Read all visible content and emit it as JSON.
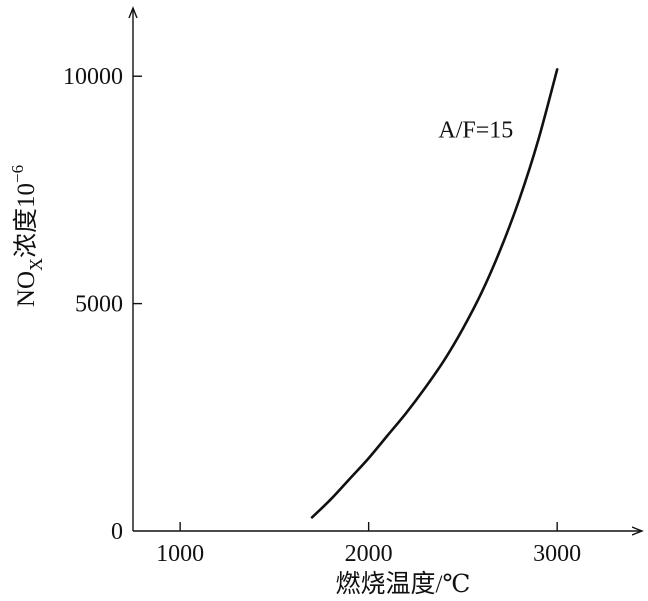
{
  "chart_data": {
    "type": "line",
    "title": "",
    "xlabel": "燃烧温度/℃",
    "ylabel": "NOX浓度10−6",
    "ylabel_parts": {
      "main": "NO",
      "subscript": "X",
      "rest": "浓度10",
      "superscript": "−6"
    },
    "xlim": [
      750,
      3450
    ],
    "ylim": [
      0,
      11500
    ],
    "x_ticks": [
      1000,
      2000,
      3000
    ],
    "x_tick_labels": [
      "1000",
      "2000",
      "3000"
    ],
    "y_ticks": [
      0,
      5000,
      10000
    ],
    "y_tick_labels": [
      "0",
      "5000",
      "10000"
    ],
    "grid": false,
    "legend": "none",
    "annotations": [
      {
        "text": "A/F=15",
        "x": 2370,
        "y": 8650
      }
    ],
    "series": [
      {
        "x": [
          1700,
          1800,
          1900,
          2000,
          2100,
          2200,
          2300,
          2400,
          2500,
          2600,
          2700,
          2800,
          2900,
          3000
        ],
        "values": [
          300,
          700,
          1150,
          1600,
          2100,
          2600,
          3150,
          3750,
          4450,
          5250,
          6200,
          7300,
          8600,
          10150
        ]
      }
    ],
    "line_color": "#111111"
  }
}
